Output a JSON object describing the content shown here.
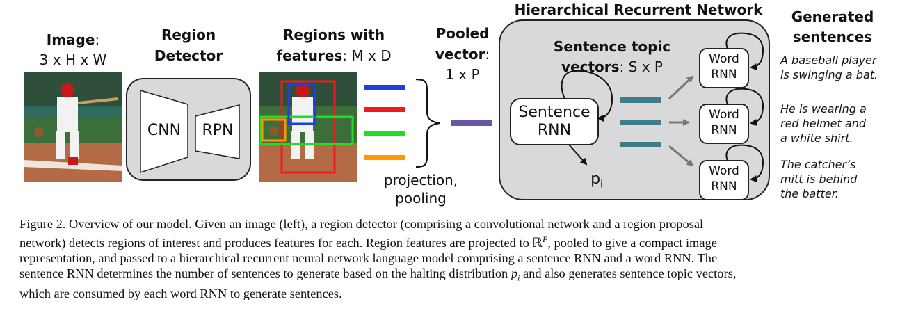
{
  "image_block": {
    "title": "Image",
    "title_colon": ":",
    "dims": "3 x H x W"
  },
  "detector_block": {
    "title_line1": "Region",
    "title_line2": "Detector",
    "cnn": "CNN",
    "rpn": "RPN"
  },
  "regions_block": {
    "title_line1": "Regions with",
    "title_line2": "features",
    "dims": ": M x D"
  },
  "projection_label": {
    "line1": "projection,",
    "line2": "pooling"
  },
  "pooled_block": {
    "title_line1": "Pooled",
    "title_line2": "vector",
    "title_colon": ":",
    "dims": "1 x P"
  },
  "hrn_block": {
    "title": "Hierarchical Recurrent Network",
    "topic_title_line1": "Sentence topic",
    "topic_title_line2": "vectors",
    "topic_dims": ": S x P",
    "sentence_rnn_line1": "Sentence",
    "sentence_rnn_line2": "RNN",
    "p_symbol": "p",
    "p_subscript": "i",
    "word_rnn_line1": "Word",
    "word_rnn_line2": "RNN"
  },
  "generated_block": {
    "title_line1": "Generated",
    "title_line2": "sentences",
    "sentences": [
      {
        "line1": "A baseball player",
        "line2": "is swinging a bat."
      },
      {
        "line1": "He is wearing a",
        "line2": "red helmet and",
        "line3": "a white shirt."
      },
      {
        "line1": "The catcher’s",
        "line2": "mitt is behind",
        "line3": "the batter."
      }
    ]
  },
  "feature_bar_colors": [
    "#1f3fe0",
    "#ee1c1c",
    "#22dd22",
    "#ff9900"
  ],
  "pooled_bar_color": "#6a55a8",
  "topic_bar_color": "#3e7c8a",
  "box_fill": "#d9d9d9",
  "caption": {
    "line1": "Figure 2. Overview of our model. Given an image (left), a region detector (comprising a convolutional network and a region proposal",
    "line2_pre": "network) detects regions of interest and produces features for each. Region features are projected to ",
    "line2_math": "ℝ",
    "line2_sup": "P",
    "line2_post": ", pooled to give a compact image",
    "line3": "representation, and passed to a hierarchical recurrent neural network language model comprising a sentence RNN and a word RNN. The",
    "line4_pre": "sentence RNN determines the number of sentences to generate based on the halting distribution ",
    "line4_math": "p",
    "line4_sub": "i",
    "line4_post": " and also generates sentence topic vectors,",
    "line5": "which are consumed by each word RNN to generate sentences."
  }
}
